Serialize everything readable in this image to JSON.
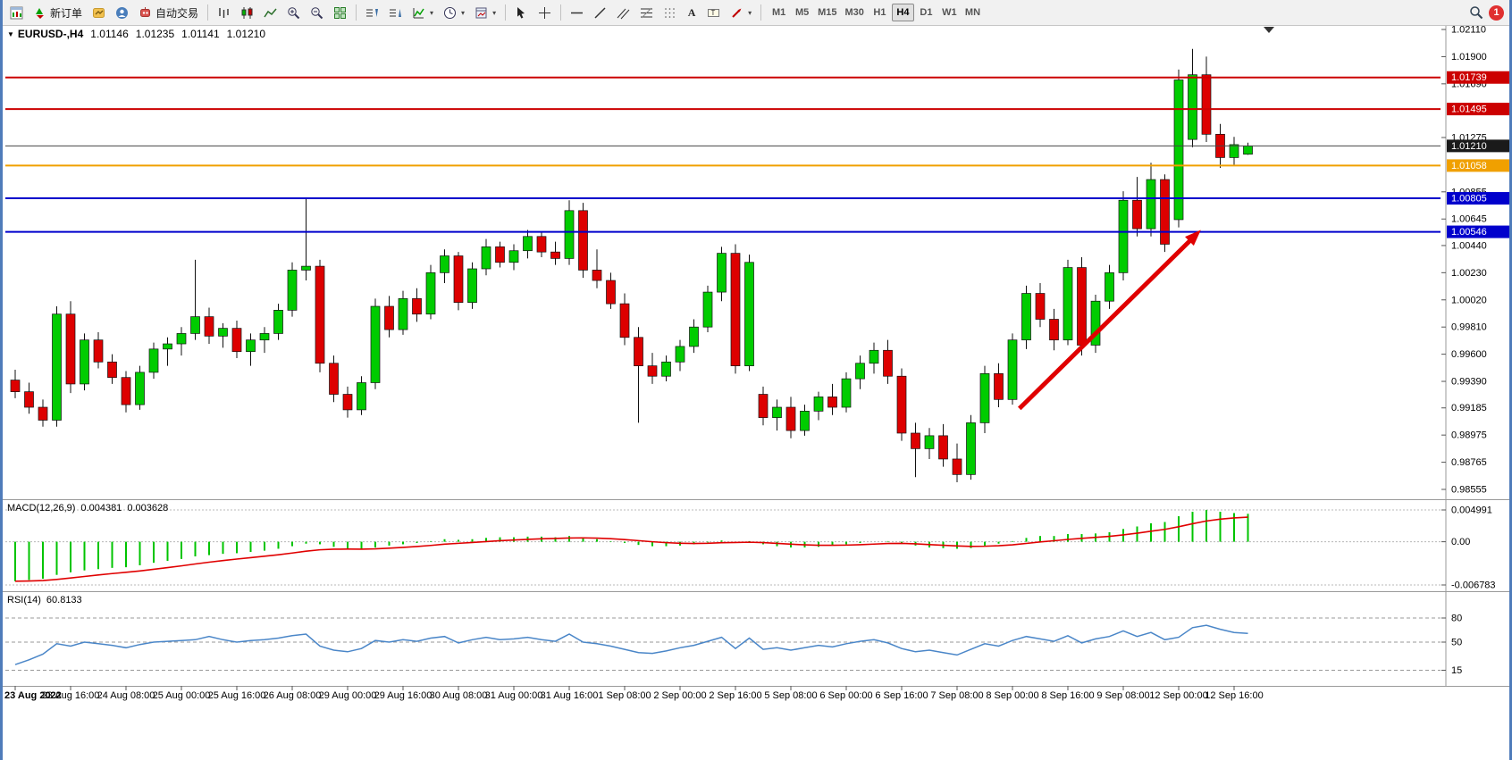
{
  "toolbar": {
    "new_order_label": "新订单",
    "auto_trading_label": "自动交易",
    "timeframes": [
      "M1",
      "M5",
      "M15",
      "M30",
      "H1",
      "H4",
      "D1",
      "W1",
      "MN"
    ],
    "active_timeframe": "H4",
    "notification_badge": "1"
  },
  "chart_header": {
    "symbol": "EURUSD-,H4",
    "open": "1.01146",
    "high": "1.01235",
    "low": "1.01141",
    "close": "1.01210"
  },
  "macd_panel": {
    "label": "MACD(12,26,9)",
    "value_main": "0.004381",
    "value_signal": "0.003628"
  },
  "rsi_pan el_note": "",
  "rsi_panel": {
    "label": "RSI(14)",
    "value": "60.8133"
  },
  "chart_data": {
    "type": "candlestick",
    "symbol": "EURUSD-",
    "timeframe": "H4",
    "price_axis": {
      "ticks": [
        "1.02110",
        "1.01900",
        "1.01690",
        "1.01275",
        "1.00855",
        "1.00645",
        "1.00440",
        "1.00230",
        "1.00020",
        "0.99810",
        "0.99600",
        "0.99390",
        "0.99185",
        "0.98975",
        "0.98765",
        "0.98555"
      ]
    },
    "candles": [
      [
        0.994,
        0.9948,
        0.9926,
        0.9931
      ],
      [
        0.9931,
        0.9938,
        0.9914,
        0.9919
      ],
      [
        0.9919,
        0.9925,
        0.9904,
        0.9909
      ],
      [
        0.9909,
        0.9997,
        0.9904,
        0.9991
      ],
      [
        0.9991,
        1.0001,
        0.993,
        0.9937
      ],
      [
        0.9937,
        0.9976,
        0.9932,
        0.9971
      ],
      [
        0.9971,
        0.9977,
        0.9949,
        0.9954
      ],
      [
        0.9954,
        0.996,
        0.9937,
        0.9942
      ],
      [
        0.9942,
        0.9947,
        0.9915,
        0.9921
      ],
      [
        0.9921,
        0.9951,
        0.9917,
        0.9946
      ],
      [
        0.9946,
        0.9969,
        0.9941,
        0.9964
      ],
      [
        0.9964,
        0.9973,
        0.9951,
        0.9968
      ],
      [
        0.9968,
        0.9981,
        0.9959,
        0.9976
      ],
      [
        0.9976,
        1.0033,
        0.9971,
        0.9989
      ],
      [
        0.9989,
        0.9996,
        0.9968,
        0.9974
      ],
      [
        0.9974,
        0.9984,
        0.9965,
        0.998
      ],
      [
        0.998,
        0.9986,
        0.9957,
        0.9962
      ],
      [
        0.9962,
        0.9976,
        0.9951,
        0.9971
      ],
      [
        0.9971,
        0.9981,
        0.9961,
        0.9976
      ],
      [
        0.9976,
        0.9999,
        0.9971,
        0.9994
      ],
      [
        0.9994,
        1.0031,
        0.9989,
        1.0025
      ],
      [
        1.0025,
        1.0081,
        1.0017,
        1.0028
      ],
      [
        1.0028,
        1.0033,
        0.9946,
        0.9953
      ],
      [
        0.9953,
        0.9959,
        0.9923,
        0.9929
      ],
      [
        0.9929,
        0.9935,
        0.9911,
        0.9917
      ],
      [
        0.9917,
        0.9943,
        0.9913,
        0.9938
      ],
      [
        0.9938,
        1.0003,
        0.9933,
        0.9997
      ],
      [
        0.9997,
        1.0005,
        0.9973,
        0.9979
      ],
      [
        0.9979,
        1.0009,
        0.9975,
        1.0003
      ],
      [
        1.0003,
        1.0011,
        0.9985,
        0.9991
      ],
      [
        0.9991,
        1.0029,
        0.9987,
        1.0023
      ],
      [
        1.0023,
        1.0041,
        1.0015,
        1.0036
      ],
      [
        1.0036,
        1.0039,
        0.9994,
        1.0
      ],
      [
        1.0,
        1.0031,
        0.9995,
        1.0026
      ],
      [
        1.0026,
        1.0049,
        1.0021,
        1.0043
      ],
      [
        1.0043,
        1.0047,
        1.0027,
        1.0031
      ],
      [
        1.0031,
        1.0045,
        1.0025,
        1.004
      ],
      [
        1.004,
        1.0056,
        1.0034,
        1.0051
      ],
      [
        1.0051,
        1.0055,
        1.0035,
        1.0039
      ],
      [
        1.0039,
        1.0047,
        1.0029,
        1.0034
      ],
      [
        1.0034,
        1.0079,
        1.0029,
        1.0071
      ],
      [
        1.0071,
        1.0077,
        1.0019,
        1.0025
      ],
      [
        1.0025,
        1.0041,
        1.0011,
        1.0017
      ],
      [
        1.0017,
        1.0023,
        0.9995,
        0.9999
      ],
      [
        0.9999,
        1.0007,
        0.9967,
        0.9973
      ],
      [
        0.9973,
        0.9981,
        0.9907,
        0.9951
      ],
      [
        0.9951,
        0.9961,
        0.9937,
        0.9943
      ],
      [
        0.9943,
        0.9959,
        0.9939,
        0.9954
      ],
      [
        0.9954,
        0.9971,
        0.9947,
        0.9966
      ],
      [
        0.9966,
        0.9987,
        0.9961,
        0.9981
      ],
      [
        0.9981,
        1.0013,
        0.9977,
        1.0008
      ],
      [
        1.0008,
        1.0043,
        1.0001,
        1.0038
      ],
      [
        1.0038,
        1.0045,
        0.9945,
        0.9951
      ],
      [
        0.9951,
        1.0037,
        0.9947,
        1.0031
      ],
      [
        0.9929,
        0.9935,
        0.9905,
        0.9911
      ],
      [
        0.9911,
        0.9925,
        0.9901,
        0.9919
      ],
      [
        0.9919,
        0.9927,
        0.9895,
        0.9901
      ],
      [
        0.9901,
        0.9921,
        0.9897,
        0.9916
      ],
      [
        0.9916,
        0.9931,
        0.9909,
        0.9927
      ],
      [
        0.9927,
        0.9937,
        0.9913,
        0.9919
      ],
      [
        0.9919,
        0.9946,
        0.9915,
        0.9941
      ],
      [
        0.9941,
        0.9959,
        0.9933,
        0.9953
      ],
      [
        0.9953,
        0.9969,
        0.9945,
        0.9963
      ],
      [
        0.9963,
        0.9971,
        0.9937,
        0.9943
      ],
      [
        0.9943,
        0.9949,
        0.9893,
        0.9899
      ],
      [
        0.9899,
        0.9907,
        0.9865,
        0.9887
      ],
      [
        0.9887,
        0.9903,
        0.9879,
        0.9897
      ],
      [
        0.9897,
        0.9906,
        0.9873,
        0.9879
      ],
      [
        0.9879,
        0.9891,
        0.9861,
        0.9867
      ],
      [
        0.9867,
        0.9913,
        0.9863,
        0.9907
      ],
      [
        0.9907,
        0.9951,
        0.9899,
        0.9945
      ],
      [
        0.9945,
        0.9953,
        0.9919,
        0.9925
      ],
      [
        0.9925,
        0.9976,
        0.9921,
        0.9971
      ],
      [
        0.9971,
        1.0013,
        0.9964,
        1.0007
      ],
      [
        1.0007,
        1.0015,
        0.9981,
        0.9987
      ],
      [
        0.9987,
        0.9995,
        0.9963,
        0.9971
      ],
      [
        0.9971,
        1.0033,
        0.9967,
        1.0027
      ],
      [
        1.0027,
        1.0035,
        0.9959,
        0.9967
      ],
      [
        0.9967,
        1.0006,
        0.9961,
        1.0001
      ],
      [
        1.0001,
        1.0029,
        0.9995,
        1.0023
      ],
      [
        1.0023,
        1.0086,
        1.0017,
        1.0079
      ],
      [
        1.0079,
        1.0097,
        1.0051,
        1.0057
      ],
      [
        1.0057,
        1.0108,
        1.0051,
        1.0095
      ],
      [
        1.0095,
        1.0099,
        1.0039,
        1.0045
      ],
      [
        1.0064,
        1.018,
        1.0058,
        1.0172
      ],
      [
        1.0126,
        1.0196,
        1.012,
        1.0176
      ],
      [
        1.0176,
        1.019,
        1.0124,
        1.013
      ],
      [
        1.013,
        1.0138,
        1.0104,
        1.0112
      ],
      [
        1.0112,
        1.0128,
        1.0106,
        1.0122
      ],
      [
        1.01146,
        1.01235,
        1.01141,
        1.0121
      ]
    ],
    "hlines": [
      {
        "price": 1.01739,
        "color": "#cc0000",
        "label": "1.01739"
      },
      {
        "price": 1.01495,
        "color": "#cc0000",
        "label": "1.01495"
      },
      {
        "price": 1.01058,
        "color": "#f0a000",
        "label": "1.01058"
      },
      {
        "price": 1.00805,
        "color": "#0000cc",
        "label": "1.00805"
      },
      {
        "price": 1.00546,
        "color": "#0000cc",
        "label": "1.00546"
      }
    ],
    "current_price": {
      "price": 1.0121,
      "label": "1.01210",
      "color": "#1a1a1a"
    },
    "time_axis": {
      "bars_per_tick": 4,
      "labels": [
        "23 Aug 2022",
        "23 Aug 16:00",
        "24 Aug 08:00",
        "25 Aug 00:00",
        "25 Aug 16:00",
        "26 Aug 08:00",
        "29 Aug 00:00",
        "29 Aug 16:00",
        "30 Aug 08:00",
        "31 Aug 00:00",
        "31 Aug 16:00",
        "1 Sep 08:00",
        "2 Sep 00:00",
        "2 Sep 16:00",
        "5 Sep 08:00",
        "6 Sep 00:00",
        "6 Sep 16:00",
        "7 Sep 08:00",
        "8 Sep 00:00",
        "8 Sep 16:00",
        "9 Sep 08:00",
        "12 Sep 00:00",
        "12 Sep 16:00"
      ]
    },
    "macd": {
      "histogram_color": "#00c400",
      "signal_color": "#e00000",
      "axis_max": {
        "value": 0.004991,
        "label": "0.004991"
      },
      "axis_zero": {
        "value": 0,
        "label": "0.00"
      },
      "axis_min": {
        "value": -0.006783,
        "label": "-0.006783"
      },
      "values": [
        -0.0062,
        -0.006,
        -0.0058,
        -0.0052,
        -0.0048,
        -0.0045,
        -0.0043,
        -0.0041,
        -0.004,
        -0.0037,
        -0.0033,
        -0.003,
        -0.0027,
        -0.0023,
        -0.0021,
        -0.0019,
        -0.0018,
        -0.0016,
        -0.0014,
        -0.0011,
        -0.0007,
        -0.0003,
        -0.0004,
        -0.0008,
        -0.0011,
        -0.0012,
        -0.0009,
        -0.0006,
        -0.0004,
        -0.0002,
        0.0001,
        0.0004,
        0.0003,
        0.0004,
        0.0006,
        0.0007,
        0.0007,
        0.0008,
        0.0008,
        0.0007,
        0.0009,
        0.0007,
        0.0004,
        0.0001,
        -0.0002,
        -0.0005,
        -0.0007,
        -0.0007,
        -0.0006,
        -0.0004,
        -0.0001,
        0.0002,
        0.0,
        0.0001,
        -0.0004,
        -0.0007,
        -0.0009,
        -0.0009,
        -0.0008,
        -0.0006,
        -0.0004,
        -0.0002,
        0.0,
        0.0001,
        -0.0002,
        -0.0006,
        -0.0009,
        -0.001,
        -0.0011,
        -0.001,
        -0.0006,
        -0.0003,
        0.0001,
        0.0006,
        0.0009,
        0.0009,
        0.0012,
        0.0012,
        0.0013,
        0.0015,
        0.002,
        0.0024,
        0.0029,
        0.0031,
        0.004,
        0.0047,
        0.005,
        0.0047,
        0.0045,
        0.004381
      ]
    },
    "rsi": {
      "line_color": "#4a86c8",
      "levels": [
        {
          "value": 80,
          "label": "80"
        },
        {
          "value": 50,
          "label": "50"
        },
        {
          "value": 15,
          "label": "15"
        }
      ],
      "values": [
        22,
        28,
        35,
        48,
        45,
        50,
        48,
        46,
        43,
        47,
        50,
        51,
        52,
        53,
        57,
        53,
        50,
        52,
        53,
        55,
        58,
        60,
        45,
        40,
        38,
        42,
        52,
        50,
        53,
        51,
        55,
        57,
        49,
        53,
        56,
        53,
        54,
        56,
        53,
        51,
        60,
        50,
        48,
        45,
        41,
        37,
        36,
        39,
        43,
        46,
        51,
        56,
        42,
        55,
        41,
        43,
        40,
        43,
        46,
        44,
        48,
        51,
        53,
        49,
        42,
        38,
        40,
        37,
        34,
        41,
        48,
        45,
        52,
        57,
        54,
        51,
        58,
        49,
        54,
        57,
        64,
        57,
        62,
        53,
        56,
        68,
        71,
        66,
        62,
        60.8133
      ]
    },
    "trend_arrow": {
      "from_bar": 72.5,
      "from_price": 0.9918,
      "to_bar": 85.6,
      "to_price": 1.0056,
      "color": "#e00000"
    },
    "colors": {
      "bull": "#00cc00",
      "bear": "#dd0000",
      "wick": "#111111"
    }
  }
}
